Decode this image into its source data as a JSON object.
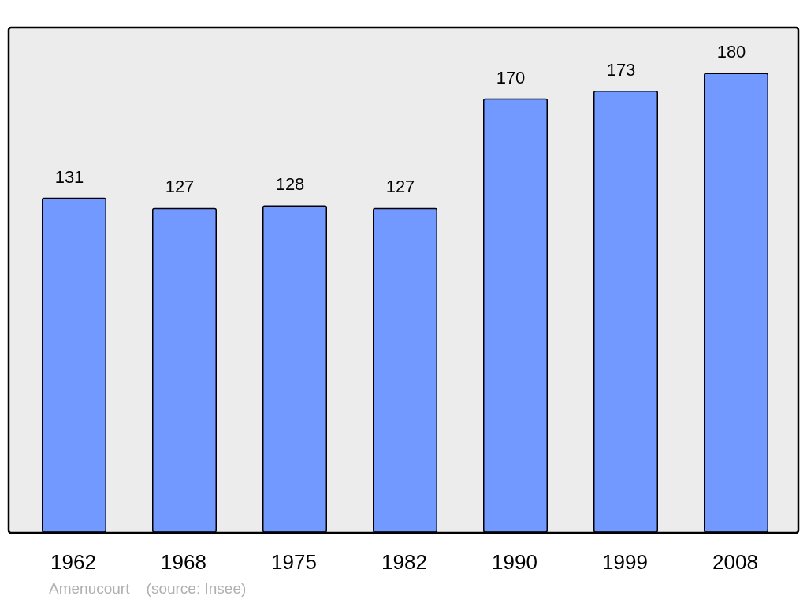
{
  "chart_data": {
    "type": "bar",
    "categories": [
      "1962",
      "1968",
      "1975",
      "1982",
      "1990",
      "1999",
      "2008"
    ],
    "values": [
      131,
      127,
      128,
      127,
      170,
      173,
      180
    ],
    "color": "#7299ff",
    "data_labels": true,
    "annotations": [
      "Amenucourt    (source: Insee)"
    ]
  }
}
